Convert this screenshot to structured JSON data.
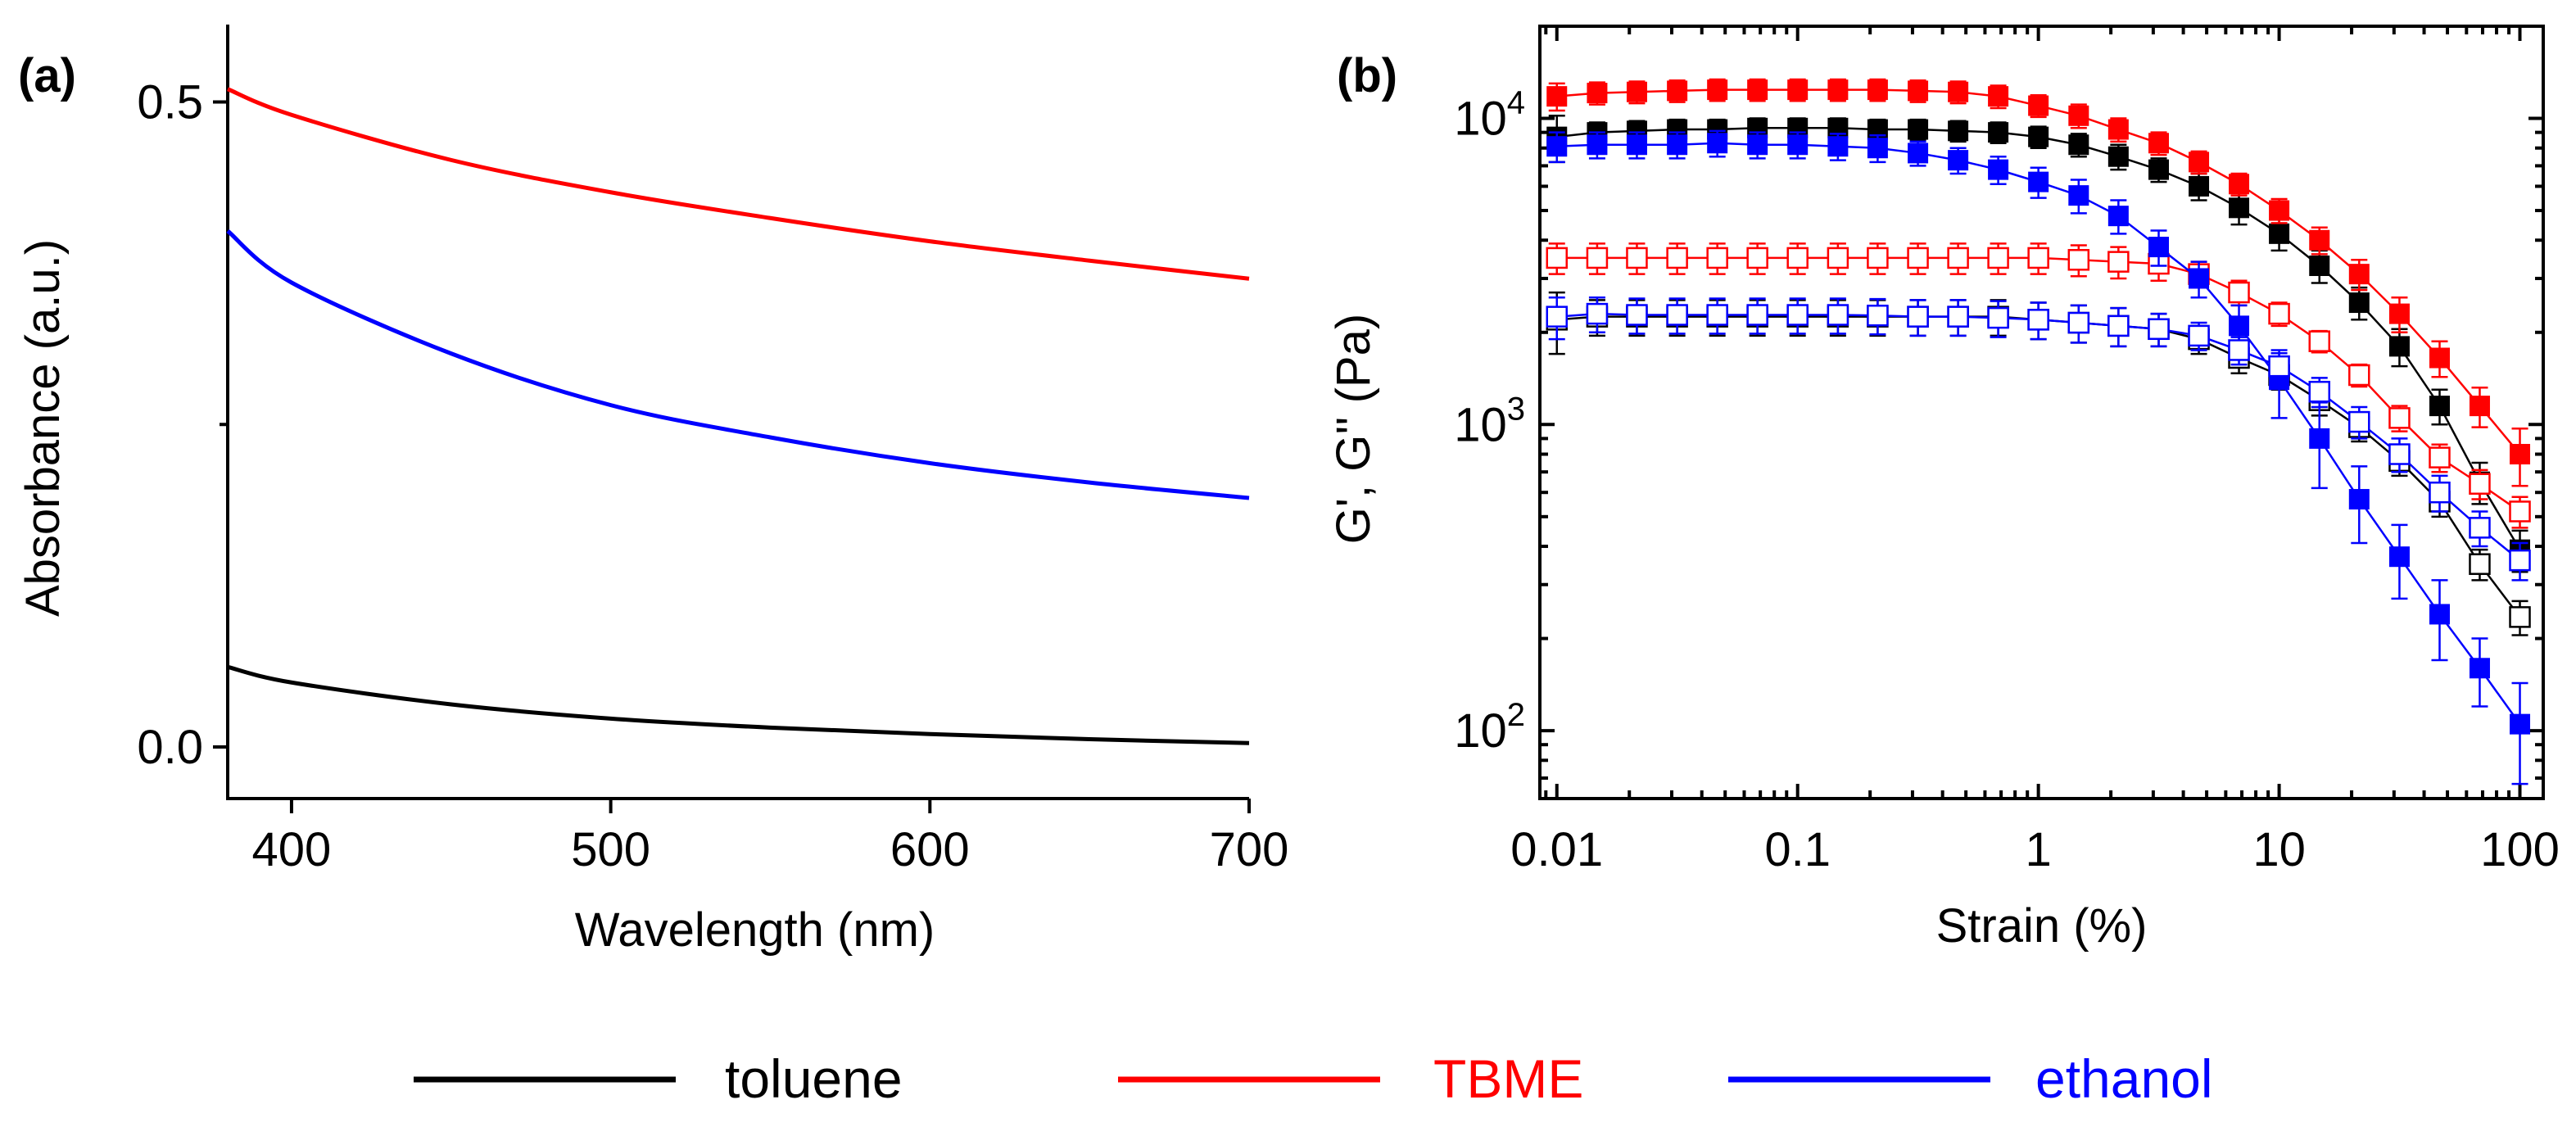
{
  "chart_data": [
    {
      "panel_label": "(a)",
      "type": "line",
      "xlabel": "Wavelength (nm)",
      "ylabel": "Absorbance (a.u.)",
      "xlim": [
        380,
        700
      ],
      "ylim": [
        -0.04,
        0.56
      ],
      "x_ticks": [
        400,
        500,
        600,
        700
      ],
      "y_ticks": [
        0.0,
        0.5
      ],
      "y_tick_labels": [
        "0.0",
        "0.5"
      ],
      "y_minor_ticks": [
        0.25
      ],
      "x": [
        380,
        400,
        450,
        500,
        550,
        600,
        650,
        700
      ],
      "series": [
        {
          "name": "toluene",
          "color": "#000000",
          "values": [
            0.062,
            0.05,
            0.033,
            0.022,
            0.015,
            0.01,
            0.006,
            0.003
          ]
        },
        {
          "name": "TBME",
          "color": "#ff0000",
          "values": [
            0.51,
            0.49,
            0.455,
            0.43,
            0.41,
            0.392,
            0.377,
            0.363
          ]
        },
        {
          "name": "ethanol",
          "color": "#0000ff",
          "values": [
            0.4,
            0.36,
            0.305,
            0.265,
            0.24,
            0.22,
            0.205,
            0.193
          ]
        }
      ]
    },
    {
      "panel_label": "(b)",
      "type": "scatter",
      "xlabel": "Strain (%)",
      "ylabel": "G', G'' (Pa)",
      "x_scale": "log",
      "y_scale": "log",
      "xlim": [
        0.0085,
        125
      ],
      "ylim": [
        60,
        20000
      ],
      "x_ticks": [
        0.01,
        0.1,
        1,
        10,
        100
      ],
      "x_tick_labels": [
        "0.01",
        "0.1",
        "1",
        "10",
        "100"
      ],
      "y_ticks": [
        100,
        1000,
        10000
      ],
      "y_tick_labels": [
        {
          "base": "10",
          "exp": "2"
        },
        {
          "base": "10",
          "exp": "3"
        },
        {
          "base": "10",
          "exp": "4"
        }
      ],
      "x": [
        0.01,
        0.0147,
        0.0215,
        0.0316,
        0.0464,
        0.0681,
        0.1,
        0.147,
        0.215,
        0.316,
        0.464,
        0.681,
        1,
        1.47,
        2.15,
        3.16,
        4.64,
        6.81,
        10,
        14.7,
        21.5,
        31.6,
        46.4,
        68.1,
        100
      ],
      "series": [
        {
          "name": "toluene G'",
          "color": "#000000",
          "filled": true,
          "values": [
            8700,
            9000,
            9100,
            9200,
            9200,
            9300,
            9300,
            9300,
            9200,
            9200,
            9100,
            9000,
            8700,
            8200,
            7500,
            6800,
            6000,
            5100,
            4200,
            3300,
            2500,
            1800,
            1150,
            650,
            390
          ],
          "errors": [
            1500,
            700,
            700,
            700,
            700,
            700,
            700,
            700,
            700,
            700,
            700,
            700,
            700,
            700,
            700,
            600,
            600,
            600,
            500,
            400,
            300,
            250,
            150,
            100,
            60
          ]
        },
        {
          "name": "toluene G''",
          "color": "#000000",
          "filled": false,
          "values": [
            2200,
            2250,
            2250,
            2250,
            2250,
            2250,
            2250,
            2250,
            2250,
            2250,
            2250,
            2250,
            2200,
            2150,
            2100,
            2050,
            1900,
            1650,
            1450,
            1200,
            980,
            760,
            560,
            350,
            235
          ],
          "errors": [
            500,
            300,
            300,
            300,
            300,
            300,
            300,
            300,
            300,
            300,
            300,
            300,
            300,
            300,
            300,
            250,
            200,
            180,
            150,
            130,
            100,
            80,
            60,
            40,
            30
          ]
        },
        {
          "name": "TBME G'",
          "color": "#ff0000",
          "filled": true,
          "values": [
            11800,
            12100,
            12200,
            12300,
            12400,
            12400,
            12400,
            12400,
            12400,
            12300,
            12200,
            11800,
            11000,
            10200,
            9200,
            8300,
            7200,
            6100,
            5000,
            4000,
            3100,
            2300,
            1650,
            1150,
            800
          ],
          "errors": [
            1200,
            1000,
            1000,
            1000,
            1000,
            1000,
            1000,
            1000,
            1000,
            1000,
            1000,
            1000,
            900,
            900,
            800,
            700,
            600,
            500,
            450,
            400,
            350,
            300,
            220,
            170,
            170
          ]
        },
        {
          "name": "TBME G''",
          "color": "#ff0000",
          "filled": false,
          "values": [
            3500,
            3500,
            3500,
            3500,
            3500,
            3500,
            3500,
            3500,
            3500,
            3500,
            3500,
            3500,
            3500,
            3450,
            3400,
            3350,
            3100,
            2700,
            2300,
            1870,
            1450,
            1050,
            780,
            640,
            520
          ],
          "errors": [
            400,
            400,
            400,
            400,
            400,
            400,
            400,
            400,
            400,
            400,
            400,
            400,
            400,
            400,
            400,
            400,
            300,
            250,
            200,
            150,
            120,
            100,
            80,
            70,
            60
          ]
        },
        {
          "name": "ethanol G'",
          "color": "#0000ff",
          "filled": true,
          "values": [
            8100,
            8200,
            8200,
            8200,
            8300,
            8200,
            8200,
            8100,
            8000,
            7700,
            7300,
            6800,
            6200,
            5600,
            4800,
            3800,
            3000,
            2100,
            1400,
            900,
            570,
            370,
            240,
            160,
            105
          ],
          "errors": [
            900,
            800,
            800,
            800,
            800,
            800,
            800,
            800,
            800,
            700,
            700,
            700,
            700,
            700,
            600,
            500,
            400,
            350,
            350,
            280,
            160,
            100,
            70,
            40,
            38
          ]
        },
        {
          "name": "ethanol G''",
          "color": "#0000ff",
          "filled": false,
          "values": [
            2250,
            2300,
            2280,
            2280,
            2280,
            2280,
            2280,
            2280,
            2270,
            2250,
            2250,
            2230,
            2200,
            2150,
            2100,
            2050,
            1950,
            1750,
            1550,
            1280,
            1020,
            800,
            600,
            460,
            360
          ],
          "errors": [
            350,
            300,
            300,
            300,
            300,
            300,
            300,
            300,
            300,
            300,
            300,
            300,
            300,
            300,
            300,
            250,
            200,
            180,
            160,
            140,
            120,
            100,
            80,
            60,
            50
          ]
        }
      ]
    }
  ],
  "legend": [
    {
      "label": "toluene",
      "color": "#000000"
    },
    {
      "label": "TBME",
      "color": "#ff0000"
    },
    {
      "label": "ethanol",
      "color": "#0000ff"
    }
  ]
}
